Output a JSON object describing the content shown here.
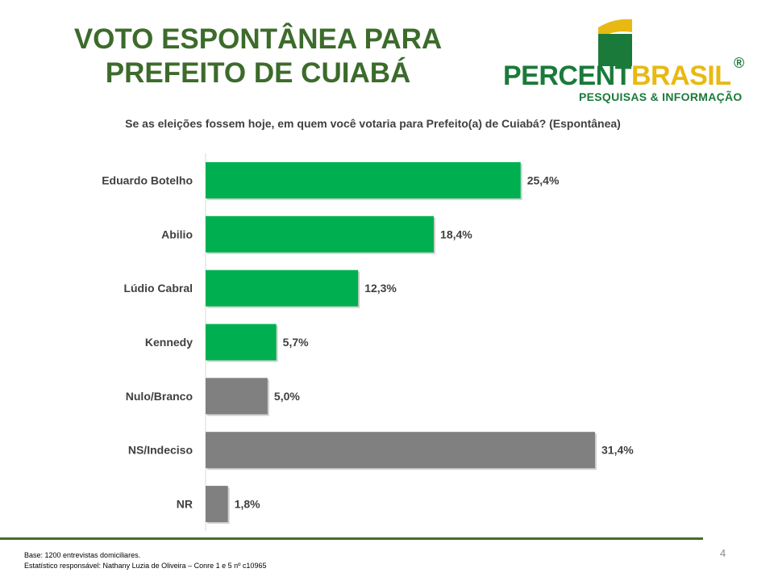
{
  "title": {
    "line1": "VOTO ESPONTÂNEA PARA",
    "line2": "PREFEITO DE CUIABÁ"
  },
  "logo": {
    "name_part1": "PERCENT",
    "name_part2": "BRASIL",
    "registered": "®",
    "tagline": "PESQUISAS & INFORMAÇÃO",
    "colors": {
      "green": "#1a7a3a",
      "yellow": "#e8b912"
    }
  },
  "question": "Se as eleições fossem hoje, em quem você votaria para Prefeito(a) de Cuiabá? (Espontânea)",
  "chart_data": {
    "type": "bar",
    "orientation": "horizontal",
    "categories": [
      "Eduardo Botelho",
      "Abilio",
      "Lúdio Cabral",
      "Kennedy",
      "Nulo/Branco",
      "NS/Indeciso",
      "NR"
    ],
    "values": [
      25.4,
      18.4,
      12.3,
      5.7,
      5.0,
      31.4,
      1.8
    ],
    "value_labels": [
      "25,4%",
      "18,4%",
      "12,3%",
      "5,7%",
      "5,0%",
      "31,4%",
      "1,8%"
    ],
    "bar_colors": [
      "#00b050",
      "#00b050",
      "#00b050",
      "#00b050",
      "#808080",
      "#808080",
      "#808080"
    ],
    "xlim": [
      0,
      40
    ],
    "grid": false
  },
  "footer": {
    "base": "Base: 1200 entrevistas domiciliares.",
    "statistician": "Estatístico responsável: Nathany Luzia de Oliveira – Conre 1 e 5 nº c10965"
  },
  "page_number": "4"
}
